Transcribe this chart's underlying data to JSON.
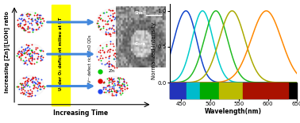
{
  "spectrum_peaks": [
    462,
    487,
    510,
    538,
    597
  ],
  "spectrum_colors": [
    "#1144cc",
    "#00cccc",
    "#22bb22",
    "#aaaa00",
    "#ff8800"
  ],
  "spectrum_widths": [
    16,
    18,
    20,
    22,
    26
  ],
  "xlim": [
    430,
    650
  ],
  "ylim": [
    -0.22,
    1.1
  ],
  "ylabel": "Normalized Intensity",
  "xlabel": "Wavelength(nm)",
  "color_bar_colors": [
    "#2233bb",
    "#00bbcc",
    "#00aa00",
    "#bbbb00",
    "#aa1100"
  ],
  "color_bar_xranges": [
    [
      430,
      460
    ],
    [
      460,
      483
    ],
    [
      483,
      516
    ],
    [
      516,
      556
    ],
    [
      556,
      635
    ]
  ],
  "yticks": [
    0.0,
    0.5,
    1.0
  ],
  "xticks": [
    450,
    500,
    550,
    600,
    650
  ],
  "bar_bottom": -0.22,
  "bar_height": 0.22
}
